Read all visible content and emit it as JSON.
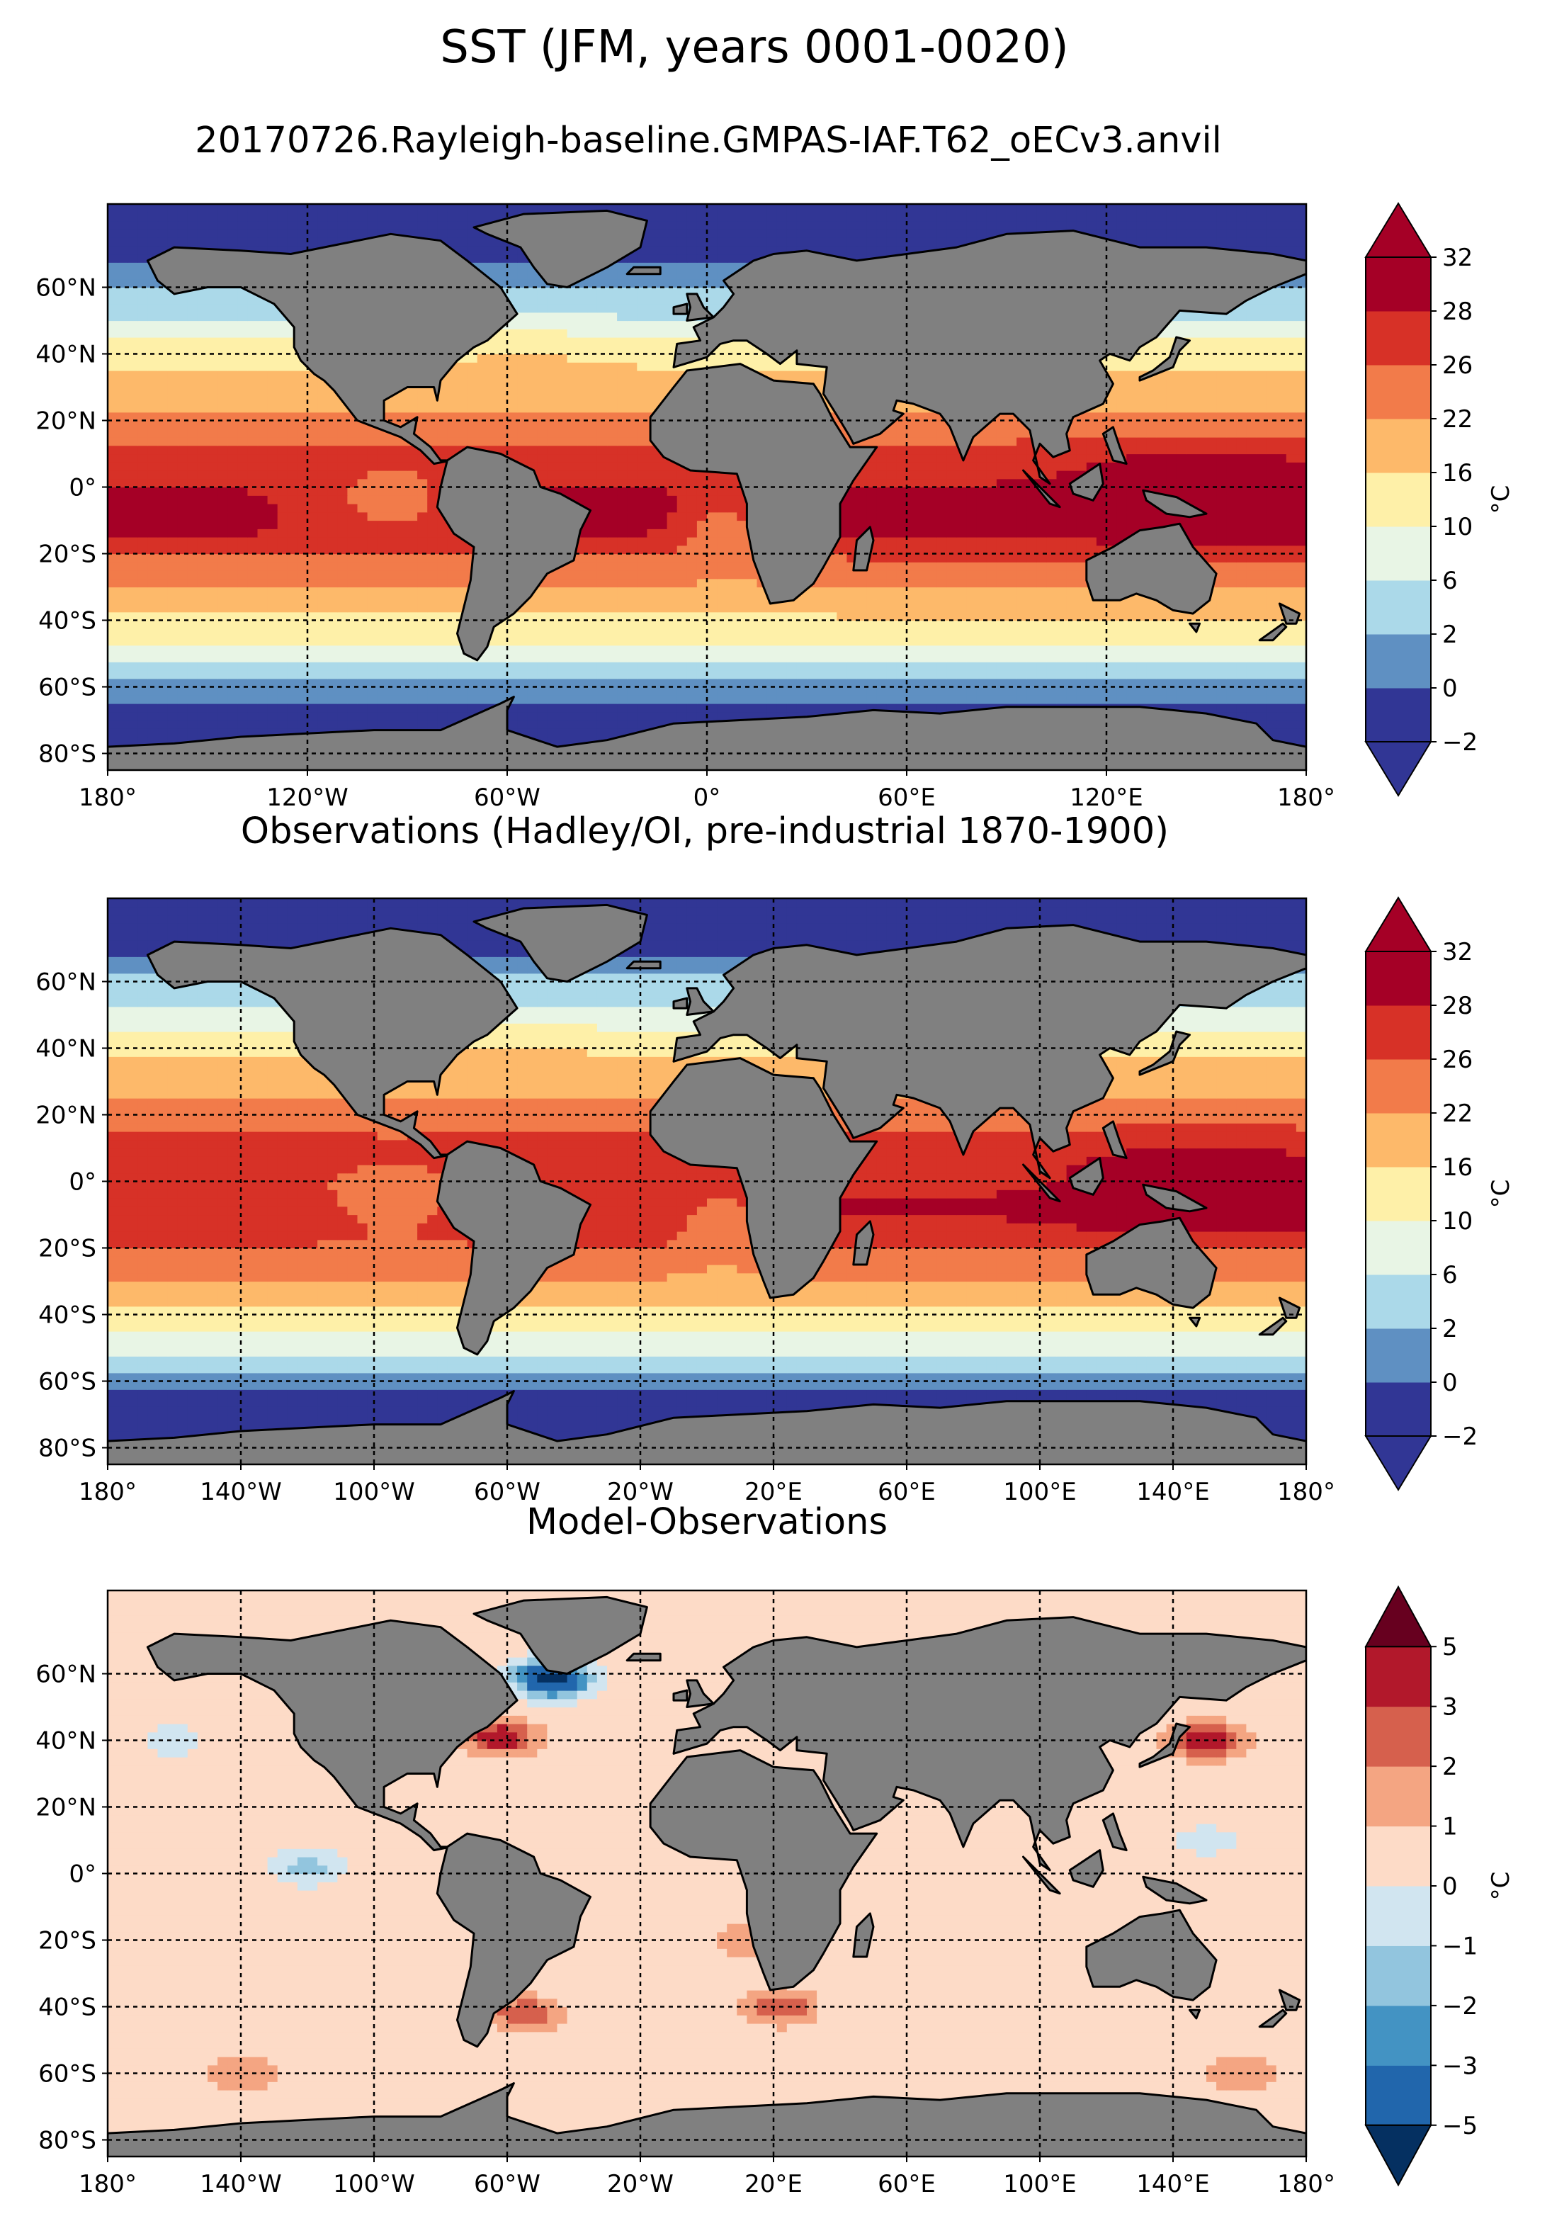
{
  "figure": {
    "title": "SST (JFM, years 0001-0020)",
    "subtitle": "20170726.Rayleigh-baseline.GMPAS-IAF.T62_oECv3.anvil"
  },
  "colors": {
    "land": "#808080",
    "ocean_frame": "#000000",
    "grid": "#000000"
  },
  "chart_data": [
    {
      "type": "heatmap",
      "panel": "model",
      "title": "",
      "variable": "SST",
      "projection": "PlateCarree",
      "xlim": [
        -180,
        180
      ],
      "ylim": [
        -85,
        85
      ],
      "x_ticks": [
        -180,
        -120,
        -60,
        0,
        60,
        120,
        180
      ],
      "x_tick_labels": [
        "180°",
        "120°W",
        "60°W",
        "0°",
        "60°E",
        "120°E",
        "180°"
      ],
      "y_ticks": [
        60,
        40,
        20,
        0,
        -20,
        -40,
        -60,
        -80
      ],
      "y_tick_labels": [
        "60°N",
        "40°N",
        "20°N",
        "0°",
        "20°S",
        "40°S",
        "60°S",
        "80°S"
      ],
      "grid": true,
      "colorbar": {
        "label": "°C",
        "levels": [
          -2,
          0,
          2,
          6,
          10,
          16,
          22,
          26,
          28,
          32
        ],
        "tick_labels": [
          "−2",
          "0",
          "2",
          "6",
          "10",
          "16",
          "22",
          "26",
          "28",
          "32"
        ],
        "colors": [
          "#313695",
          "#5f90c2",
          "#abd9e9",
          "#e8f5e5",
          "#fef0a8",
          "#fdb96a",
          "#f27b4a",
          "#d73127",
          "#a50026"
        ],
        "extend": "both",
        "under_color": "#313695",
        "over_color": "#a50026"
      },
      "zonal_profile": [
        [
          -85,
          -2
        ],
        [
          -75,
          -1.8
        ],
        [
          -68,
          -1
        ],
        [
          -62,
          0.5
        ],
        [
          -56,
          3
        ],
        [
          -52,
          6
        ],
        [
          -48,
          9
        ],
        [
          -44,
          12
        ],
        [
          -40,
          15
        ],
        [
          -35,
          19
        ],
        [
          -30,
          22
        ],
        [
          -25,
          24.5
        ],
        [
          -20,
          26.5
        ],
        [
          -15,
          28
        ],
        [
          -10,
          28.5
        ],
        [
          -5,
          28.5
        ],
        [
          0,
          28
        ],
        [
          5,
          27.5
        ],
        [
          10,
          27
        ],
        [
          15,
          25.5
        ],
        [
          20,
          23
        ],
        [
          25,
          21
        ],
        [
          30,
          19
        ],
        [
          35,
          16.5
        ],
        [
          40,
          13
        ],
        [
          45,
          9.5
        ],
        [
          50,
          6.5
        ],
        [
          55,
          4
        ],
        [
          60,
          2
        ],
        [
          65,
          0.5
        ],
        [
          70,
          -1
        ],
        [
          75,
          -1.8
        ],
        [
          85,
          -2
        ]
      ]
    },
    {
      "type": "heatmap",
      "panel": "observations",
      "title": "Observations (Hadley/OI, pre-industrial 1870-1900)",
      "variable": "SST",
      "projection": "PlateCarree",
      "xlim": [
        -180,
        180
      ],
      "ylim": [
        -85,
        85
      ],
      "x_ticks": [
        -180,
        -140,
        -100,
        -60,
        -20,
        20,
        60,
        100,
        140,
        180
      ],
      "x_tick_labels": [
        "180°",
        "140°W",
        "100°W",
        "60°W",
        "20°W",
        "20°E",
        "60°E",
        "100°E",
        "140°E",
        "180°"
      ],
      "y_ticks": [
        60,
        40,
        20,
        0,
        -20,
        -40,
        -60,
        -80
      ],
      "y_tick_labels": [
        "60°N",
        "40°N",
        "20°N",
        "0°",
        "20°S",
        "40°S",
        "60°S",
        "80°S"
      ],
      "grid": true,
      "colorbar": {
        "label": "°C",
        "levels": [
          -2,
          0,
          2,
          6,
          10,
          16,
          22,
          26,
          28,
          32
        ],
        "tick_labels": [
          "−2",
          "0",
          "2",
          "6",
          "10",
          "16",
          "22",
          "26",
          "28",
          "32"
        ],
        "colors": [
          "#313695",
          "#5f90c2",
          "#abd9e9",
          "#e8f5e5",
          "#fef0a8",
          "#fdb96a",
          "#f27b4a",
          "#d73127",
          "#a50026"
        ],
        "extend": "both",
        "under_color": "#313695",
        "over_color": "#a50026"
      },
      "zonal_profile": [
        [
          -85,
          -2
        ],
        [
          -75,
          -1.8
        ],
        [
          -68,
          -1.2
        ],
        [
          -62,
          0
        ],
        [
          -56,
          2.5
        ],
        [
          -52,
          5.5
        ],
        [
          -48,
          8.5
        ],
        [
          -44,
          11.5
        ],
        [
          -40,
          14.5
        ],
        [
          -35,
          18.5
        ],
        [
          -30,
          21.5
        ],
        [
          -25,
          24
        ],
        [
          -20,
          26
        ],
        [
          -15,
          27.5
        ],
        [
          -10,
          28
        ],
        [
          -5,
          28
        ],
        [
          0,
          27.5
        ],
        [
          5,
          27.5
        ],
        [
          10,
          27
        ],
        [
          15,
          26
        ],
        [
          20,
          24
        ],
        [
          25,
          22
        ],
        [
          30,
          20
        ],
        [
          35,
          17
        ],
        [
          40,
          13.5
        ],
        [
          45,
          10
        ],
        [
          50,
          7
        ],
        [
          55,
          4.5
        ],
        [
          60,
          2.5
        ],
        [
          65,
          0.5
        ],
        [
          70,
          -1
        ],
        [
          75,
          -1.8
        ],
        [
          85,
          -2
        ]
      ]
    },
    {
      "type": "heatmap",
      "panel": "difference",
      "title": "Model-Observations",
      "variable": "SST bias",
      "projection": "PlateCarree",
      "xlim": [
        -180,
        180
      ],
      "ylim": [
        -85,
        85
      ],
      "x_ticks": [
        -180,
        -140,
        -100,
        -60,
        -20,
        20,
        60,
        100,
        140,
        180
      ],
      "x_tick_labels": [
        "180°",
        "140°W",
        "100°W",
        "60°W",
        "20°W",
        "20°E",
        "60°E",
        "100°E",
        "140°E",
        "180°"
      ],
      "y_ticks": [
        60,
        40,
        20,
        0,
        -20,
        -40,
        -60,
        -80
      ],
      "y_tick_labels": [
        "60°N",
        "40°N",
        "20°N",
        "0°",
        "20°S",
        "40°S",
        "60°S",
        "80°S"
      ],
      "grid": true,
      "colorbar": {
        "label": "°C",
        "levels": [
          -5,
          -3,
          -2,
          -1,
          0,
          1,
          2,
          3,
          5
        ],
        "tick_labels": [
          "−5",
          "−3",
          "−2",
          "−1",
          "0",
          "1",
          "2",
          "3",
          "5"
        ],
        "colors": [
          "#2166ac",
          "#4393c3",
          "#92c5de",
          "#d1e5f0",
          "#fddbc7",
          "#f4a582",
          "#d6604d",
          "#b2182b"
        ],
        "extend": "both",
        "under_color": "#053061",
        "over_color": "#67001f"
      },
      "background_value": 0.5,
      "features": [
        {
          "name": "labrador-sea-cold",
          "lon": -45,
          "lat": 58,
          "value": -4
        },
        {
          "name": "labrador-sea-cold-wide",
          "lon": -50,
          "lat": 60,
          "value": -2
        },
        {
          "name": "gulf-stream-warm",
          "lon": -62,
          "lat": 41,
          "value": 4
        },
        {
          "name": "kuroshio-warm",
          "lon": 150,
          "lat": 40,
          "value": 4
        },
        {
          "name": "agulhas-warm",
          "lon": 22,
          "lat": -40,
          "value": 3
        },
        {
          "name": "brazil-malvinas-warm",
          "lon": -55,
          "lat": -42,
          "value": 3
        },
        {
          "name": "benguela-warm",
          "lon": 12,
          "lat": -20,
          "value": 2
        },
        {
          "name": "south-pacific-warm",
          "lon": -140,
          "lat": -60,
          "value": 2
        },
        {
          "name": "southern-ocean-warm",
          "lon": 160,
          "lat": -60,
          "value": 2
        },
        {
          "name": "eastern-equatorial-pacific-cold",
          "lon": -120,
          "lat": 2,
          "value": -1.5
        },
        {
          "name": "north-pacific-cold",
          "lon": -160,
          "lat": 40,
          "value": -0.5
        },
        {
          "name": "west-pacific-cold",
          "lon": 150,
          "lat": 10,
          "value": -0.5
        }
      ]
    }
  ]
}
